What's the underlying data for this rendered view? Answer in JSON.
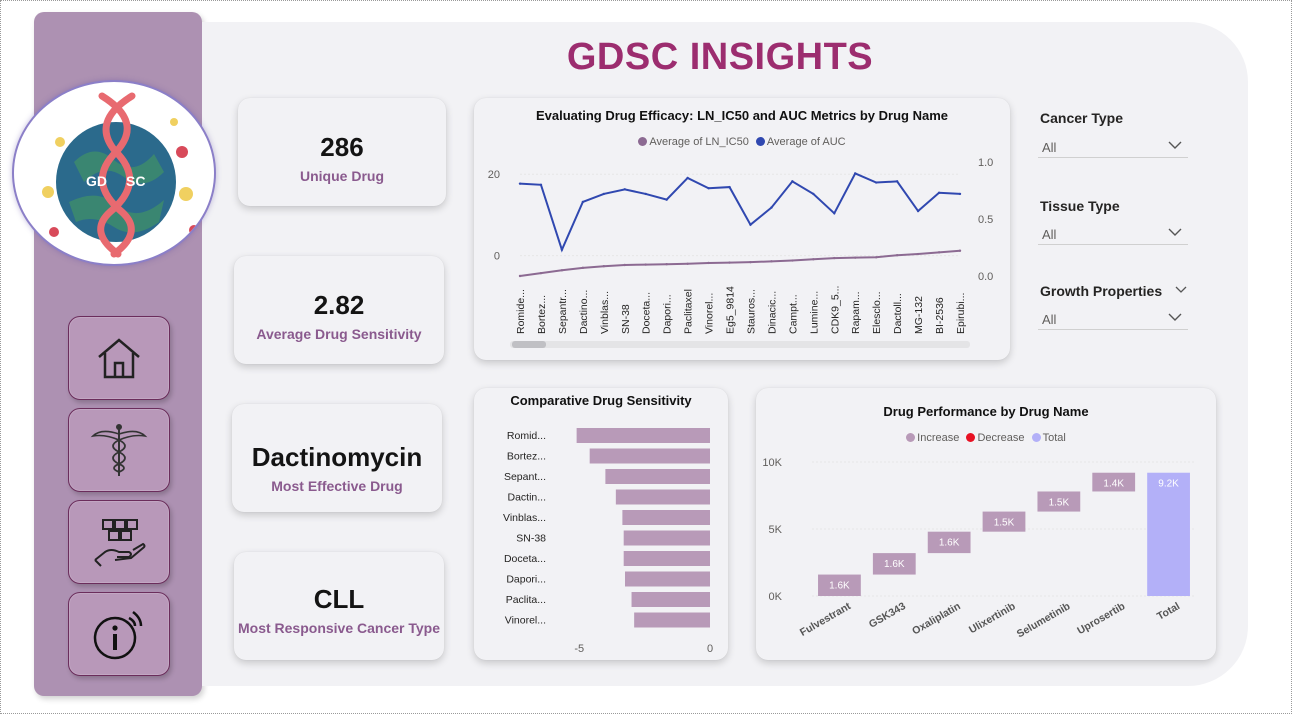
{
  "title": "GDSC INSIGHTS",
  "logo": {
    "left_text": "GD",
    "right_text": "SC"
  },
  "nav": [
    {
      "name": "home",
      "icon": "home-icon"
    },
    {
      "name": "medical",
      "icon": "caduceus-icon"
    },
    {
      "name": "delivery",
      "icon": "hand-boxes-icon"
    },
    {
      "name": "info",
      "icon": "info-icon"
    }
  ],
  "kpis": [
    {
      "value": "286",
      "label": "Unique Drug"
    },
    {
      "value": "2.82",
      "label": "Average Drug Sensitivity"
    },
    {
      "value": "Dactinomycin",
      "label": "Most Effective Drug"
    },
    {
      "value": "CLL",
      "label": "Most Responsive Cancer Type"
    }
  ],
  "filters": [
    {
      "label": "Cancer Type",
      "value": "All"
    },
    {
      "label": "Tissue Type",
      "value": "All"
    },
    {
      "label": "Growth Properties",
      "value": "All"
    }
  ],
  "colors": {
    "accent": "#9c2d6f",
    "sidebar": "#ad91b2",
    "ic50": "#8c6a92",
    "auc": "#3048b0",
    "bar": "#b89ab8",
    "increase": "#b89ab8",
    "decrease": "#e81123",
    "total": "#b3b0f8"
  },
  "chart_data": [
    {
      "type": "line",
      "title": "Evaluating Drug Efficacy: LN_IC50 and AUC Metrics by Drug Name",
      "categories": [
        "Romide...",
        "Bortez...",
        "Sepantr...",
        "Dactino...",
        "Vinblas...",
        "SN-38",
        "Doceta...",
        "Dapori...",
        "Paclitaxel",
        "Vinorel...",
        "Eg5_9814",
        "Stauros...",
        "Dinacic...",
        "Campt...",
        "Lumine...",
        "CDK9_5...",
        "Rapam...",
        "Elesclo...",
        "Dactoll...",
        "MG-132",
        "BI-2536",
        "Epirubi..."
      ],
      "series": [
        {
          "name": "Average of LN_IC50",
          "axis": "left",
          "values": [
            -5.0,
            -4.3,
            -3.6,
            -3.0,
            -2.6,
            -2.3,
            -2.2,
            -2.1,
            -2.0,
            -1.8,
            -1.7,
            -1.6,
            -1.4,
            -1.2,
            -0.9,
            -0.6,
            -0.5,
            -0.4,
            0.1,
            0.4,
            0.8,
            1.2
          ]
        },
        {
          "name": "Average of AUC",
          "axis": "right",
          "values": [
            0.81,
            0.8,
            0.23,
            0.65,
            0.72,
            0.76,
            0.72,
            0.67,
            0.86,
            0.77,
            0.78,
            0.45,
            0.6,
            0.83,
            0.72,
            0.55,
            0.9,
            0.82,
            0.83,
            0.57,
            0.73,
            0.72
          ]
        }
      ],
      "yticks_left": [
        "20",
        "0"
      ],
      "yticks_right": [
        "1.0",
        "0.5",
        "0.0"
      ],
      "ylim_left": [
        -5,
        23
      ],
      "ylim_right": [
        0.0,
        1.0
      ]
    },
    {
      "type": "bar",
      "orientation": "horizontal",
      "title": "Comparative Drug Sensitivity",
      "categories": [
        "Romid...",
        "Bortez...",
        "Sepant...",
        "Dactin...",
        "Vinblas...",
        "SN-38",
        "Doceta...",
        "Dapori...",
        "Paclita...",
        "Vinorel..."
      ],
      "values": [
        -5.1,
        -4.6,
        -4.0,
        -3.6,
        -3.35,
        -3.3,
        -3.3,
        -3.25,
        -3.0,
        -2.9
      ],
      "xticks": [
        "-5",
        "0"
      ],
      "xlim": [
        -5.2,
        0
      ]
    },
    {
      "type": "waterfall",
      "title": "Drug Performance by Drug Name",
      "legend": [
        "Increase",
        "Decrease",
        "Total"
      ],
      "categories": [
        "Fulvestrant",
        "GSK343",
        "Oxaliplatin",
        "Ulixertinib",
        "Selumetinib",
        "Uprosertib",
        "Total"
      ],
      "values": [
        1.6,
        1.6,
        1.6,
        1.5,
        1.5,
        1.4,
        9.2
      ],
      "labels": [
        "1.6K",
        "1.6K",
        "1.6K",
        "1.5K",
        "1.5K",
        "1.4K",
        "9.2K"
      ],
      "yticks": [
        "10K",
        "5K",
        "0K"
      ],
      "ylim": [
        0,
        10
      ]
    }
  ]
}
